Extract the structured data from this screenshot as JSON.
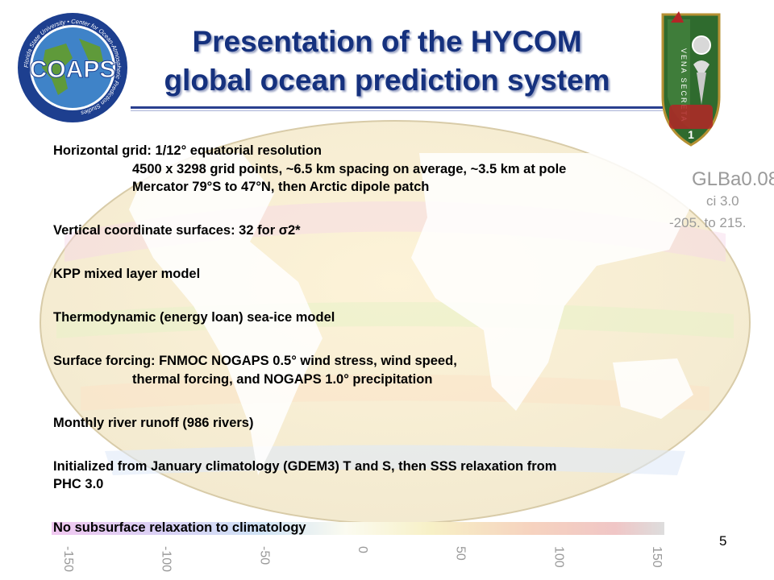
{
  "slide": {
    "title_line1": "Presentation of the HYCOM",
    "title_line2": "global ocean prediction system",
    "page_number": "5"
  },
  "logo": {
    "name": "COAPS",
    "ring_text": "Florida State University • Center for Ocean-Atmospheric Prediction Studies",
    "colors": {
      "ring": "#1d3f8f",
      "globe": "#3f83c8",
      "land": "#5f9a3a"
    }
  },
  "insignia": {
    "ring_text": "VENA SECRETA",
    "number": "1",
    "colors": {
      "shield": "#2f6b2e",
      "border": "#b59033",
      "accent": "#b32626"
    }
  },
  "background_map": {
    "label": "GLBa0.08",
    "ci_label": "ci 3.0",
    "range_label": "-205. to 215.",
    "colorbar_ticks": [
      "-150",
      "-100",
      "-50",
      "0",
      "50",
      "100",
      "150"
    ]
  },
  "content": {
    "grid_heading": "Horizontal grid: 1/12° equatorial resolution",
    "grid_points": "4500 x 3298 grid points, ~6.5 km spacing on average, ~3.5 km at pole",
    "grid_mercator": "Mercator 79°S to 47°N, then Arctic dipole patch",
    "vertical": "Vertical coordinate surfaces: 32 for σ2*",
    "kpp": "KPP mixed layer model",
    "seaice": "Thermodynamic (energy loan) sea-ice model",
    "forcing_1": "Surface forcing: FNMOC NOGAPS 0.5° wind stress, wind speed,",
    "forcing_2": "thermal forcing, and NOGAPS 1.0° precipitation",
    "runoff": "Monthly river runoff (986 rivers)",
    "init_1": "Initialized from January climatology (GDEM3) T and S, then SSS relaxation from",
    "init_2": "PHC 3.0",
    "subsurface": "No subsurface relaxation to climatology"
  }
}
